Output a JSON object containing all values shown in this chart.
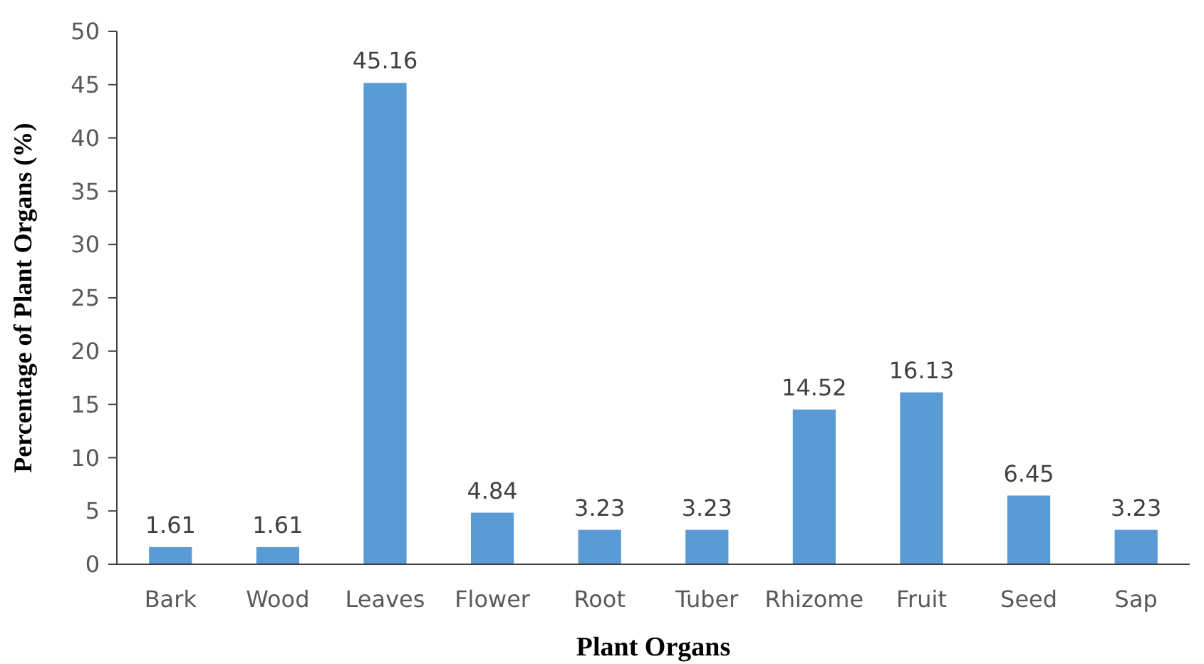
{
  "chart_data": {
    "type": "bar",
    "xlabel": "Plant Organs",
    "ylabel": "Percentage of Plant Organs (%)",
    "categories": [
      "Bark",
      "Wood",
      "Leaves",
      "Flower",
      "Root",
      "Tuber",
      "Rhizome",
      "Fruit",
      "Seed",
      "Sap"
    ],
    "values": [
      1.61,
      1.61,
      45.16,
      4.84,
      3.23,
      3.23,
      14.52,
      16.13,
      6.45,
      3.23
    ],
    "color": "#5b9bd5",
    "ylim": [
      0,
      50
    ],
    "yticks": [
      0,
      5,
      10,
      15,
      20,
      25,
      30,
      35,
      40,
      45,
      50
    ],
    "data_labels": true,
    "grid": false
  }
}
